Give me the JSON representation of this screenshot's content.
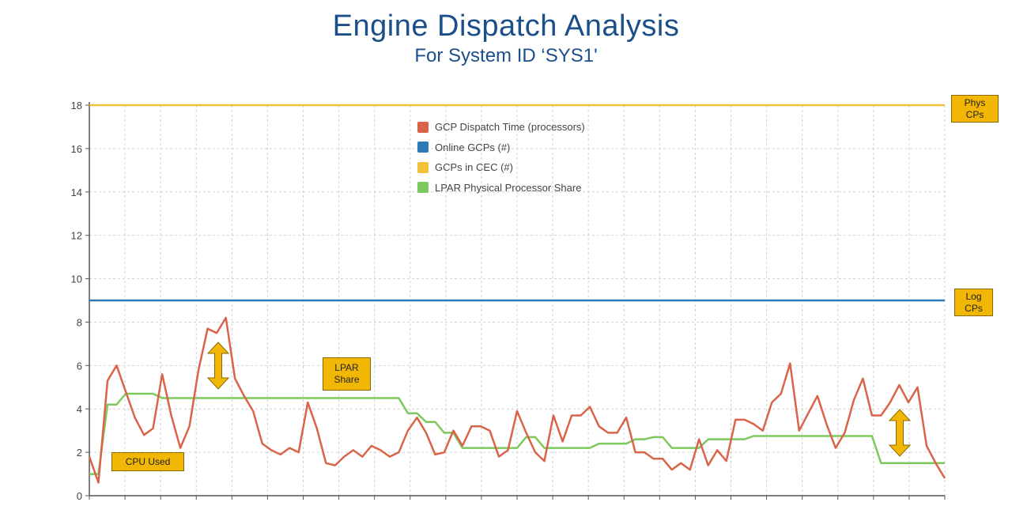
{
  "title": "Engine Dispatch Analysis",
  "subtitle": "For System ID ‘SYS1'",
  "annotations": {
    "phys_cps": "Phys CPs",
    "log_cps": "Log CPs",
    "lpar_share": "LPAR Share",
    "cpu_used": "CPU Used"
  },
  "colors": {
    "dispatch": "#d9644a",
    "online": "#2c7bb6",
    "cec": "#f0c23b",
    "share": "#7dc95e",
    "callout": "#f2b705",
    "title": "#1b4f8a"
  },
  "chart_data": {
    "type": "line",
    "title": "",
    "xlabel": "",
    "ylabel": "",
    "ylim": [
      0,
      18
    ],
    "yticks": [
      "0",
      "2",
      "4",
      "6",
      "8",
      "10",
      "12",
      "14",
      "16",
      "18"
    ],
    "grid": true,
    "legend_position": "top-center",
    "series": [
      {
        "name": "GCP Dispatch Time (processors)",
        "color": "#d9644a",
        "values": [
          1.8,
          0.6,
          5.3,
          6.0,
          4.8,
          3.6,
          2.8,
          3.1,
          5.6,
          3.7,
          2.2,
          3.2,
          5.8,
          7.7,
          7.5,
          8.2,
          5.4,
          4.6,
          3.9,
          2.4,
          2.1,
          1.9,
          2.2,
          2.0,
          4.3,
          3.1,
          1.5,
          1.4,
          1.8,
          2.1,
          1.8,
          2.3,
          2.1,
          1.8,
          2.0,
          3.0,
          3.6,
          2.9,
          1.9,
          2.0,
          3.0,
          2.3,
          3.2,
          3.2,
          3.0,
          1.8,
          2.1,
          3.9,
          2.9,
          2.0,
          1.6,
          3.7,
          2.5,
          3.7,
          3.7,
          4.1,
          3.2,
          2.9,
          2.9,
          3.6,
          2.0,
          2.0,
          1.7,
          1.7,
          1.2,
          1.5,
          1.2,
          2.6,
          1.4,
          2.1,
          1.6,
          3.5,
          3.5,
          3.3,
          3.0,
          4.3,
          4.7,
          6.1,
          3.0,
          3.8,
          4.6,
          3.3,
          2.2,
          2.9,
          4.4,
          5.4,
          3.7,
          3.7,
          4.3,
          5.1,
          4.3,
          5.0,
          2.3,
          1.5,
          0.8
        ]
      },
      {
        "name": "Online GCPs (#)",
        "color": "#2c7bb6",
        "values": [
          9,
          9
        ]
      },
      {
        "name": "GCPs in CEC (#)",
        "color": "#f0c23b",
        "values": [
          18,
          18
        ]
      },
      {
        "name": "LPAR Physical Processor Share",
        "color": "#7dc95e",
        "values": [
          1.0,
          1.0,
          4.2,
          4.2,
          4.7,
          4.7,
          4.7,
          4.7,
          4.5,
          4.5,
          4.5,
          4.5,
          4.5,
          4.5,
          4.5,
          4.5,
          4.5,
          4.5,
          4.5,
          4.5,
          4.5,
          4.5,
          4.5,
          4.5,
          4.5,
          4.5,
          4.5,
          4.5,
          4.5,
          4.5,
          4.5,
          4.5,
          4.5,
          4.5,
          4.5,
          3.8,
          3.8,
          3.4,
          3.4,
          2.9,
          2.9,
          2.2,
          2.2,
          2.2,
          2.2,
          2.2,
          2.2,
          2.2,
          2.7,
          2.7,
          2.2,
          2.2,
          2.2,
          2.2,
          2.2,
          2.2,
          2.4,
          2.4,
          2.4,
          2.4,
          2.6,
          2.6,
          2.7,
          2.7,
          2.2,
          2.2,
          2.2,
          2.2,
          2.6,
          2.6,
          2.6,
          2.6,
          2.6,
          2.75,
          2.75,
          2.75,
          2.75,
          2.75,
          2.75,
          2.75,
          2.75,
          2.75,
          2.75,
          2.75,
          2.75,
          2.75,
          2.75,
          1.5,
          1.5,
          1.5,
          1.5,
          1.5,
          1.5,
          1.5,
          1.5
        ]
      }
    ]
  }
}
